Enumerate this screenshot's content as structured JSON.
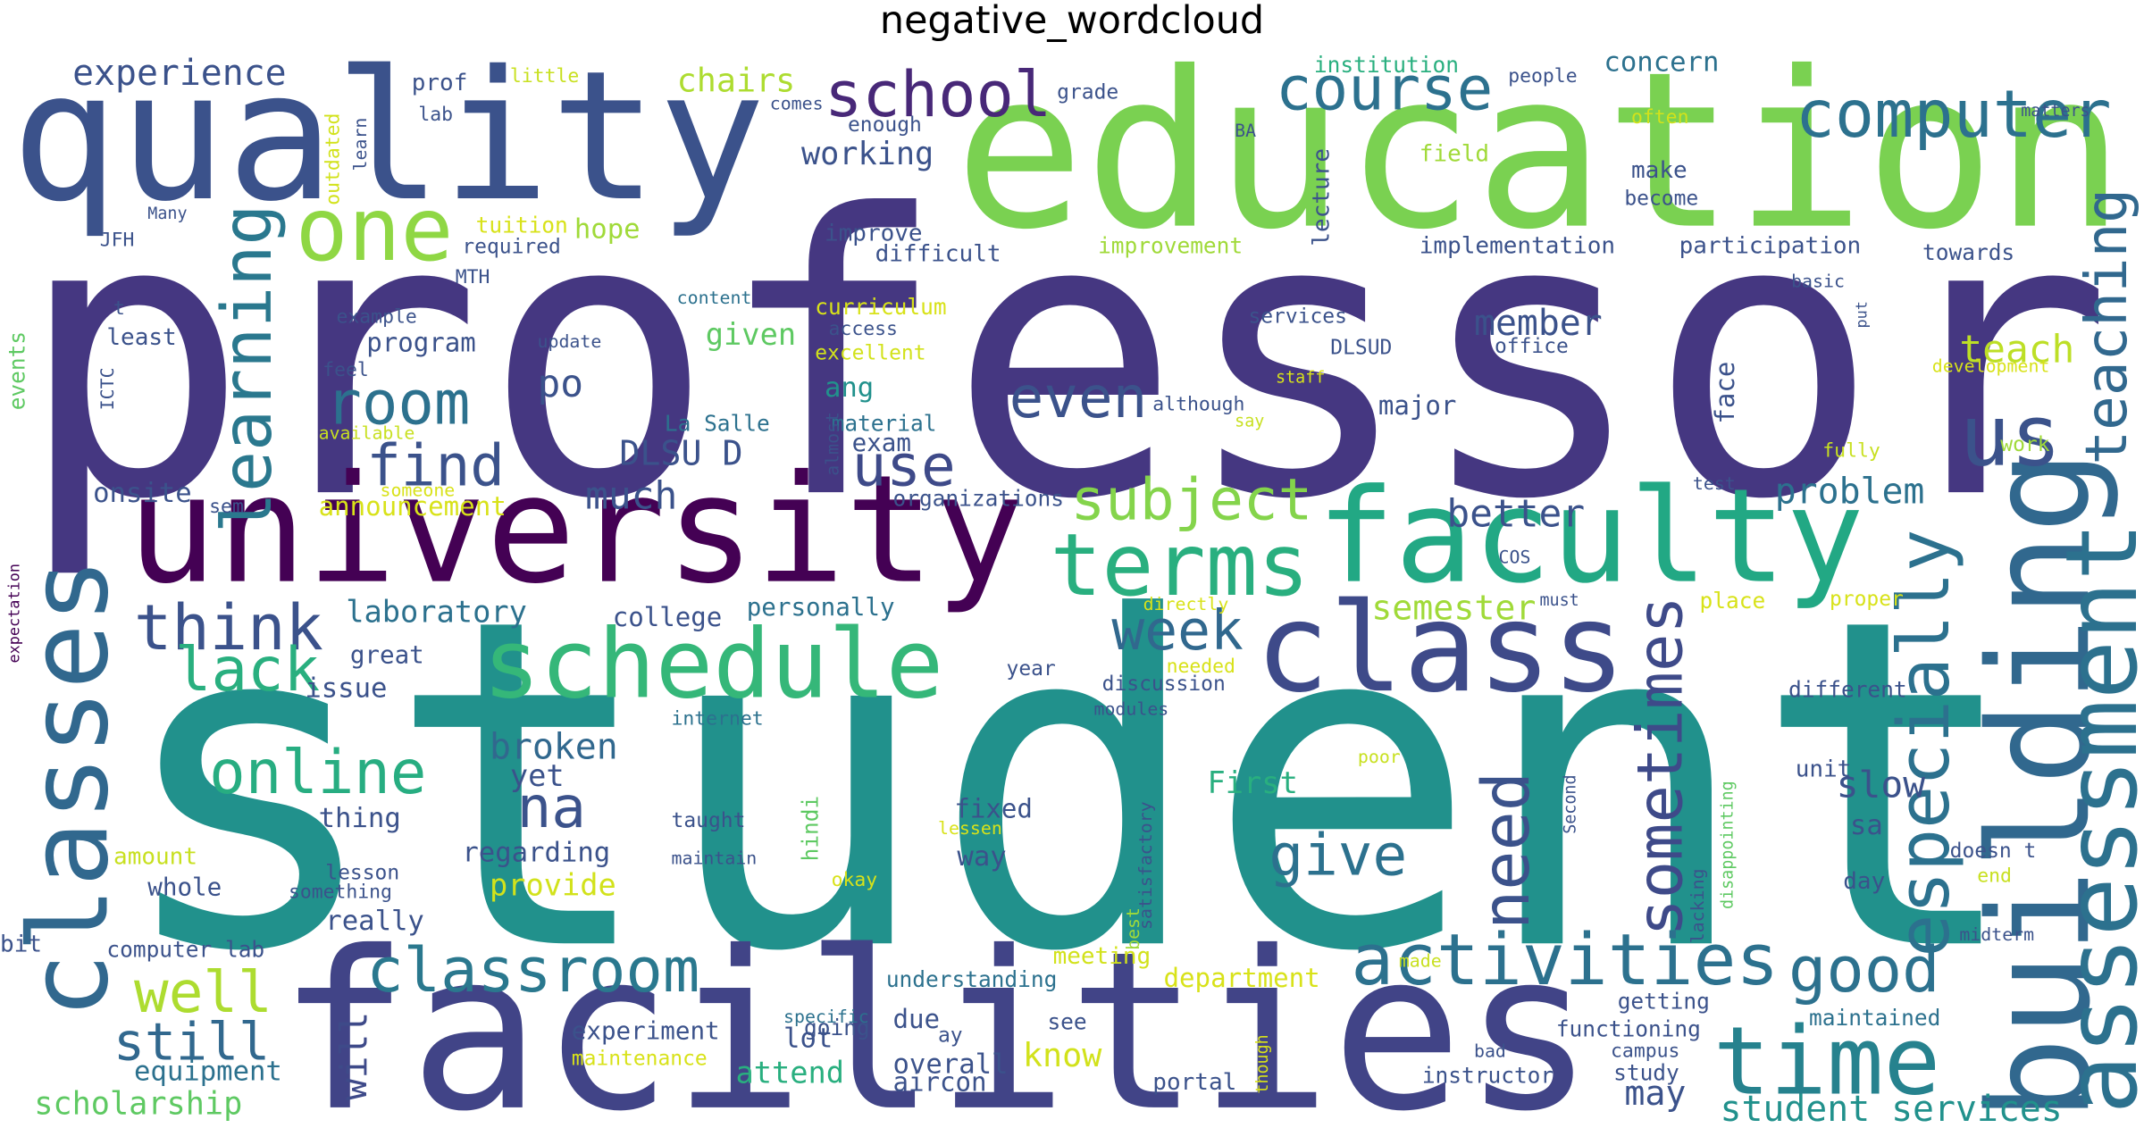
{
  "chart_data": {
    "type": "wordcloud",
    "title": "negative_wordcloud",
    "words": [
      "professor",
      "student",
      "education",
      "quality",
      "university",
      "faculty",
      "facilities",
      "class",
      "classes",
      "building",
      "assessment",
      "teaching",
      "us",
      "schedule",
      "terms",
      "time",
      "activities",
      "classroom",
      "school",
      "course",
      "computer",
      "one",
      "learning",
      "room",
      "find",
      "think",
      "lack",
      "well",
      "online",
      "still",
      "scholarship",
      "equipment",
      "subject",
      "even",
      "use",
      "na",
      "week",
      "give",
      "need",
      "sometimes",
      "especially",
      "good",
      "better",
      "problem",
      "member",
      "teach",
      "semester",
      "broken",
      "yet",
      "regarding",
      "provide",
      "First",
      "slow",
      "sa",
      "unit",
      "day",
      "different",
      "midterm",
      "maintained",
      "student services",
      "may",
      "getting",
      "functioning",
      "campus",
      "study",
      "instructor",
      "bad",
      "portal",
      "overall",
      "aircon",
      "see",
      "know",
      "department",
      "understanding",
      "meeting",
      "due",
      "ay",
      "lot",
      "going",
      "specific",
      "attend",
      "experiment",
      "maintenance",
      "will",
      "really",
      "whole",
      "amount",
      "lesson",
      "something",
      "computer lab",
      "bit",
      "thing",
      "issue",
      "great",
      "laboratory",
      "college",
      "personally",
      "announcement",
      "someone",
      "onsite",
      "sem",
      "much",
      "organizations",
      "DLSU D",
      "La Salle",
      "exam",
      "material",
      "almost",
      "ang",
      "excellent",
      "given",
      "access",
      "curriculum",
      "content",
      "po",
      "program",
      "hope",
      "tuition",
      "required",
      "MTH",
      "example",
      "least",
      "feel",
      "available",
      "update",
      "t",
      "events",
      "ICTC",
      "expectation",
      "JFH",
      "Many",
      "outdated",
      "learn",
      "prof",
      "little",
      "lab",
      "experience",
      "chairs",
      "comes",
      "enough",
      "working",
      "grade",
      "improve",
      "difficult",
      "improvement",
      "lecture",
      "BA",
      "field",
      "institution",
      "concern",
      "people",
      "often",
      "make",
      "become",
      "implementation",
      "participation",
      "towards",
      "basic",
      "put",
      "development",
      "matters",
      "services",
      "office",
      "DLSUD",
      "staff",
      "although",
      "say",
      "major",
      "face",
      "work",
      "fully",
      "test",
      "COS",
      "must",
      "place",
      "proper",
      "directly",
      "discussion",
      "needed",
      "modules",
      "year",
      "internet",
      "taught",
      "maintain",
      "hindi",
      "okay",
      "lessen",
      "fixed",
      "way",
      "satisfactory",
      "best",
      "though",
      "poor",
      "made",
      "Second",
      "disappointing",
      "lacking",
      "doesn t",
      "end"
    ],
    "colors": [
      "#453781",
      "#21918c",
      "#7ad151",
      "#3b528b",
      "#440154",
      "#22a884",
      "#414487",
      "#3e4a89",
      "#31688e",
      "#31688e",
      "#2c718e",
      "#31688e",
      "#3b528b",
      "#35b779",
      "#29af7f",
      "#26828e",
      "#2c718e",
      "#2a788e",
      "#482878",
      "#2c718e",
      "#2c718e",
      "#8fd744",
      "#2a788e",
      "#2c718e",
      "#3b528b",
      "#3b528b",
      "#29af7f",
      "#addc30",
      "#27ad81",
      "#31688e",
      "#5ec962",
      "#2c718e",
      "#84d44b",
      "#3b528b",
      "#3e4a89",
      "#3b528b",
      "#31688e",
      "#2c718e",
      "#3b528b",
      "#3e4a89",
      "#2c718e",
      "#2c718e",
      "#3b528b",
      "#2c718e",
      "#3b528b",
      "#bddf26",
      "#a0da39",
      "#31688e",
      "#3b528b",
      "#3b528b",
      "#d2e21b",
      "#29af7f",
      "#3b528b",
      "#3b528b",
      "#3b528b",
      "#3b528b",
      "#3b528b",
      "#3b528b",
      "#2c718e",
      "#21918c",
      "#3b528b",
      "#3b528b",
      "#3b528b",
      "#3b528b",
      "#3b528b",
      "#3b528b",
      "#3b528b",
      "#3b528b",
      "#3b528b",
      "#3b528b",
      "#3b528b",
      "#d2e21b",
      "#d8e219",
      "#2c718e",
      "#d2e21b",
      "#3b528b",
      "#3b528b",
      "#3b528b",
      "#3b528b",
      "#2c718e",
      "#29af7f",
      "#3b528b",
      "#d8e219",
      "#3e4a89",
      "#3b528b",
      "#3b528b",
      "#c8e020",
      "#3b528b",
      "#3b528b",
      "#3b528b",
      "#3b528b",
      "#3b528b",
      "#3b528b",
      "#3b528b",
      "#2c718e",
      "#3b528b",
      "#2c718e",
      "#d8e219",
      "#d8e219",
      "#3b528b",
      "#3b528b",
      "#3b528b",
      "#3b528b",
      "#3b528b",
      "#2c718e",
      "#3b528b",
      "#2c718e",
      "#3b528b",
      "#21918c",
      "#d2e21b",
      "#5ec962",
      "#3b528b",
      "#d8e219",
      "#2c718e",
      "#3b528b",
      "#3b528b",
      "#a0da39",
      "#d8e219",
      "#3b528b",
      "#3b528b",
      "#3b528b",
      "#3b528b",
      "#3b528b",
      "#c8e020",
      "#3b528b",
      "#3b528b",
      "#5ec962",
      "#3b528b",
      "#440154",
      "#3b528b",
      "#3b528b",
      "#d2e21b",
      "#3b528b",
      "#3b528b",
      "#c8e020",
      "#3b528b",
      "#3b528b",
      "#addc30",
      "#3b528b",
      "#3b528b",
      "#3b528b",
      "#3b528b",
      "#3b528b",
      "#3b528b",
      "#a0da39",
      "#3b528b",
      "#3b528b",
      "#a0da39",
      "#29af7f",
      "#2c718e",
      "#3b528b",
      "#d2e21b",
      "#3b528b",
      "#3b528b",
      "#3b528b",
      "#3b528b",
      "#3b528b",
      "#3b528b",
      "#3b528b",
      "#d8e219",
      "#3b528b",
      "#3b528b",
      "#3b528b",
      "#3b528b",
      "#d8e219",
      "#3b528b",
      "#c8e020",
      "#3b528b",
      "#3b528b",
      "#a0da39",
      "#c8e020",
      "#3b528b",
      "#3b528b",
      "#3b528b",
      "#d8e219",
      "#d8e219",
      "#d8e219",
      "#3b528b",
      "#d8e219",
      "#3b528b",
      "#3b528b",
      "#2c718e",
      "#3b528b",
      "#3b528b",
      "#5ec962",
      "#d8e219",
      "#d8e219",
      "#3b528b",
      "#3b528b",
      "#3b528b",
      "#a0da39",
      "#d8e219",
      "#c8e020",
      "#c8e020",
      "#3b528b",
      "#5ec962",
      "#3b528b",
      "#3b528b",
      "#c8e020"
    ]
  }
}
